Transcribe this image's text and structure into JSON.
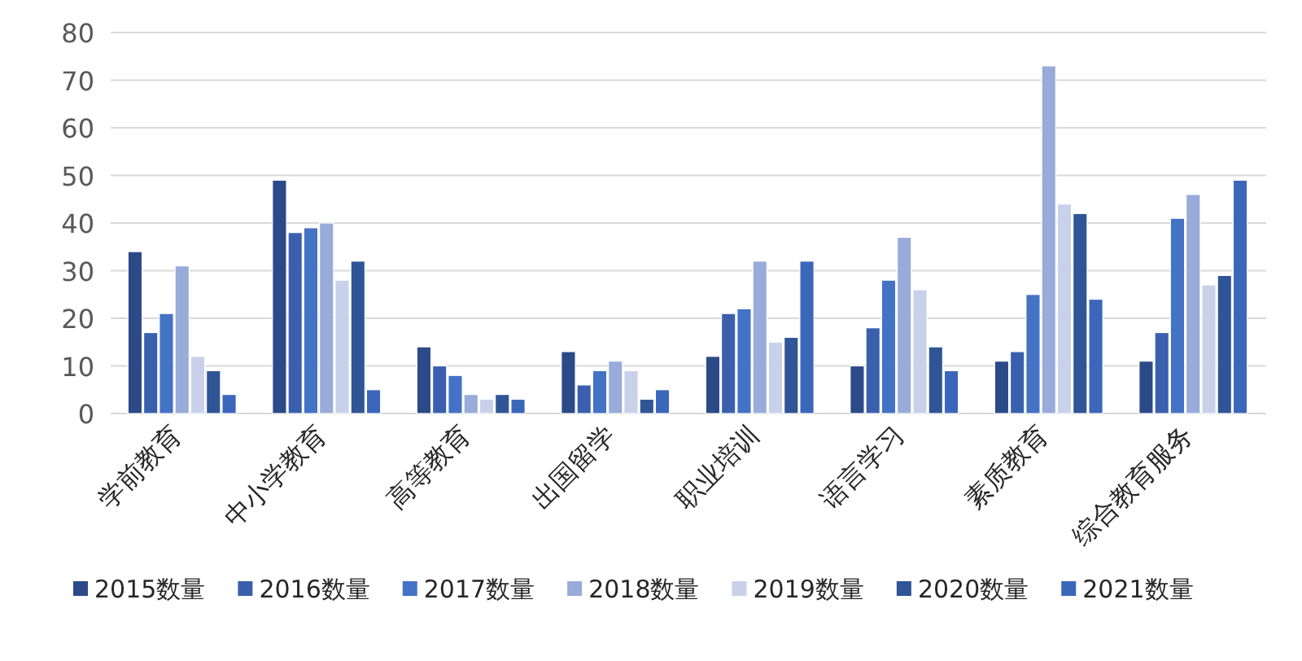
{
  "chart_data": {
    "type": "bar",
    "categories": [
      "学前教育",
      "中小学教育",
      "高等教育",
      "出国留学",
      "职业培训",
      "语言学习",
      "素质教育",
      "综合教育服务"
    ],
    "series": [
      {
        "name": "2015数量",
        "color": "#2c4a87",
        "values": [
          34,
          49,
          14,
          13,
          12,
          10,
          11,
          11
        ]
      },
      {
        "name": "2016数量",
        "color": "#3a60ad",
        "values": [
          17,
          38,
          10,
          6,
          21,
          18,
          13,
          17
        ]
      },
      {
        "name": "2017数量",
        "color": "#4472c4",
        "values": [
          21,
          39,
          8,
          9,
          22,
          28,
          25,
          41
        ]
      },
      {
        "name": "2018数量",
        "color": "#98abd9",
        "values": [
          31,
          40,
          4,
          11,
          32,
          37,
          73,
          46
        ]
      },
      {
        "name": "2019数量",
        "color": "#c9d1ea",
        "values": [
          12,
          28,
          3,
          9,
          15,
          26,
          44,
          27
        ]
      },
      {
        "name": "2020数量",
        "color": "#2f5597",
        "values": [
          9,
          32,
          4,
          3,
          16,
          14,
          42,
          29
        ]
      },
      {
        "name": "2021数量",
        "color": "#3b67bb",
        "values": [
          4,
          5,
          3,
          5,
          32,
          9,
          24,
          49
        ]
      }
    ],
    "ylim": [
      0,
      80
    ],
    "yticks": [
      0,
      10,
      20,
      30,
      40,
      50,
      60,
      70,
      80
    ],
    "grid": "y",
    "legend": "bottom"
  }
}
